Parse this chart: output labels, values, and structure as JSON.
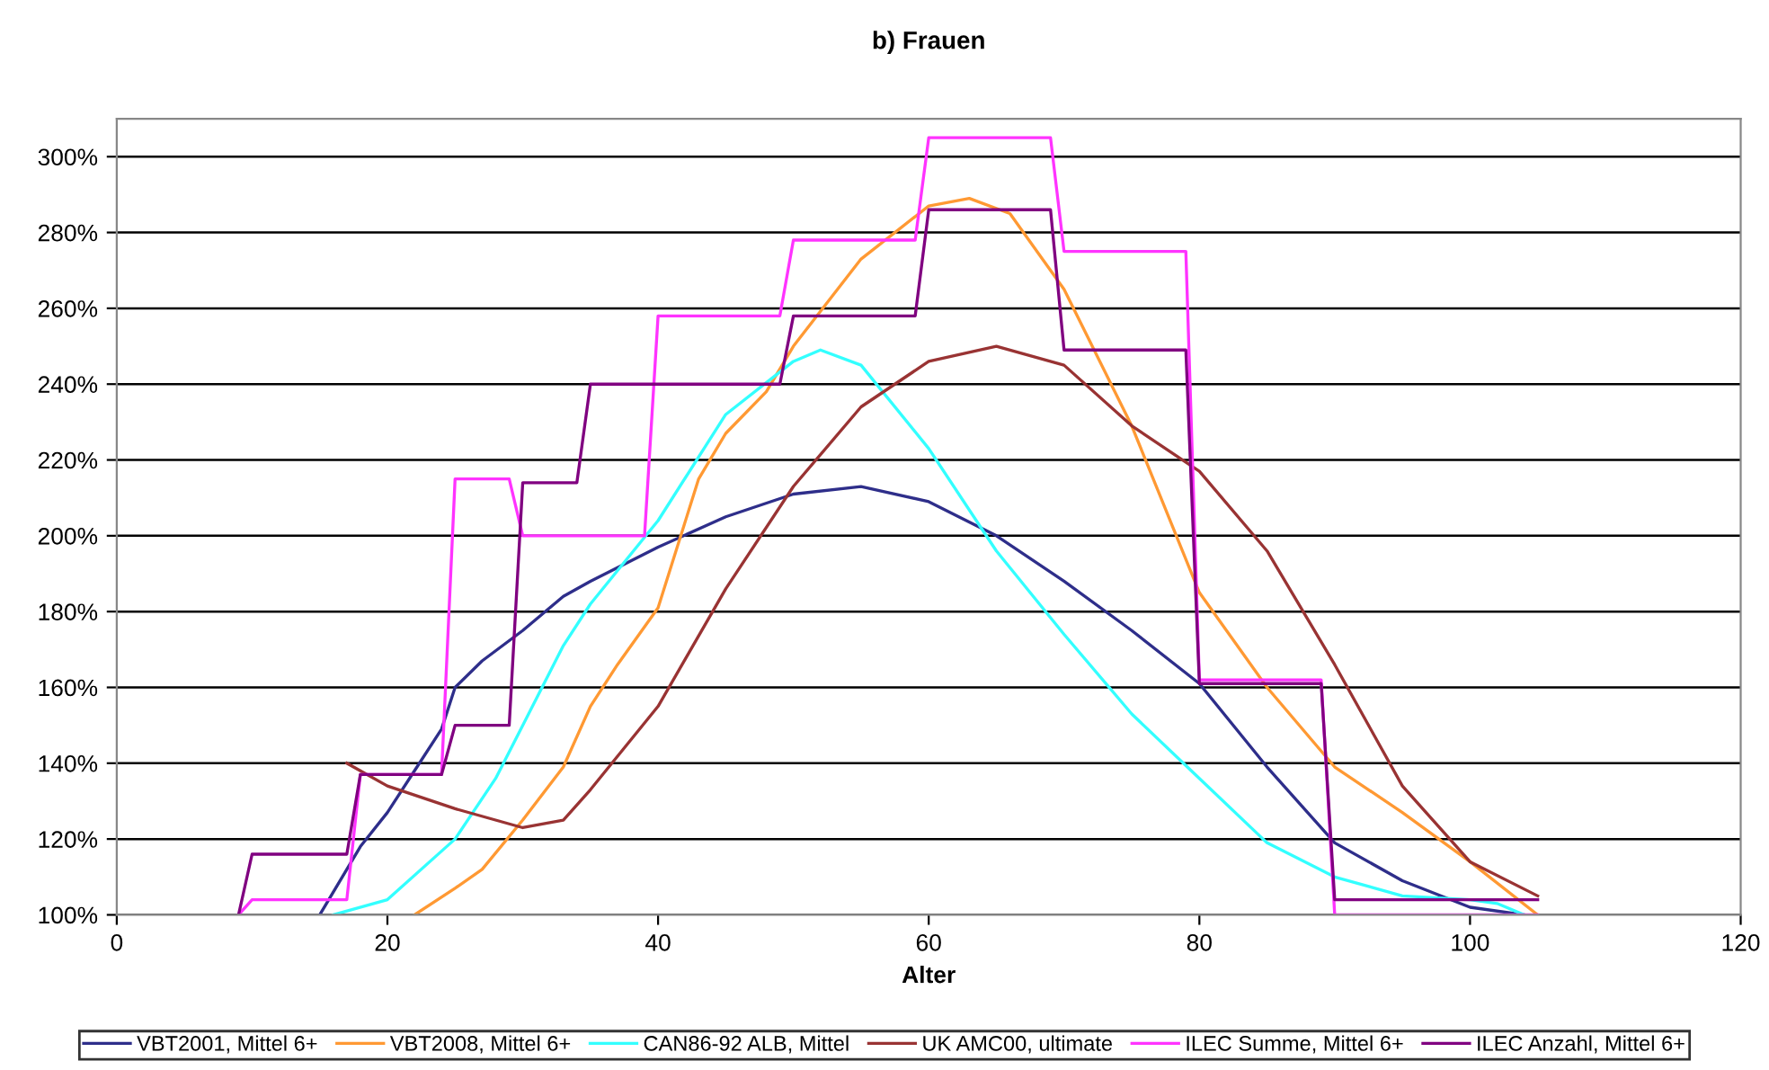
{
  "chart_data": {
    "type": "line",
    "title": "b) Frauen",
    "xlabel": "Alter",
    "xlim": [
      0,
      120
    ],
    "xticks": [
      0,
      20,
      40,
      60,
      80,
      100,
      120
    ],
    "ylim": [
      100,
      310
    ],
    "yticks": [
      {
        "value": 100,
        "label": "100%"
      },
      {
        "value": 120,
        "label": "120%"
      },
      {
        "value": 140,
        "label": "140%"
      },
      {
        "value": 160,
        "label": "160%"
      },
      {
        "value": 180,
        "label": "180%"
      },
      {
        "value": 200,
        "label": "200%"
      },
      {
        "value": 220,
        "label": "220%"
      },
      {
        "value": 240,
        "label": "240%"
      },
      {
        "value": 260,
        "label": "260%"
      },
      {
        "value": 280,
        "label": "280%"
      },
      {
        "value": 300,
        "label": "300%"
      }
    ],
    "grid": "y",
    "legend": "bottom",
    "marker": "none",
    "line_style": "solid",
    "series": [
      {
        "name": "VBT2001, Mittel 6+",
        "color": "#2e2e8a",
        "x": [
          15,
          18,
          20,
          22,
          24,
          25,
          27,
          30,
          33,
          35,
          40,
          45,
          50,
          55,
          60,
          65,
          70,
          75,
          80,
          85,
          90,
          95,
          100,
          104
        ],
        "values": [
          100,
          118,
          127,
          138,
          149,
          160,
          167,
          175,
          184,
          188,
          197,
          205,
          211,
          213,
          209,
          200,
          188,
          175,
          161,
          139,
          119,
          109,
          102,
          100
        ]
      },
      {
        "name": "VBT2008, Mittel 6+",
        "color": "#ff9933",
        "x": [
          22,
          25,
          27,
          30,
          33,
          35,
          37,
          40,
          43,
          45,
          48,
          50,
          55,
          60,
          63,
          66,
          70,
          75,
          80,
          85,
          90,
          95,
          100,
          105
        ],
        "values": [
          100,
          107,
          112,
          125,
          139,
          155,
          166,
          181,
          215,
          227,
          238,
          250,
          273,
          287,
          289,
          285,
          265,
          229,
          185,
          160,
          139,
          127,
          114,
          100
        ]
      },
      {
        "name": "CAN86-92 ALB, Mittel",
        "color": "#33ffff",
        "x": [
          16,
          20,
          25,
          28,
          30,
          33,
          35,
          40,
          45,
          50,
          52,
          55,
          60,
          65,
          70,
          75,
          80,
          85,
          90,
          95,
          100,
          102,
          104
        ],
        "values": [
          100,
          104,
          120,
          136,
          150,
          171,
          182,
          204,
          232,
          246,
          249,
          245,
          223,
          196,
          174,
          153,
          136,
          119,
          110,
          105,
          104,
          103,
          100
        ]
      },
      {
        "name": "UK AMC00, ultimate",
        "color": "#993333",
        "x": [
          17,
          20,
          25,
          30,
          33,
          35,
          40,
          45,
          50,
          55,
          60,
          65,
          70,
          75,
          80,
          85,
          90,
          95,
          100,
          105
        ],
        "values": [
          140,
          134,
          128,
          123,
          125,
          133,
          155,
          186,
          213,
          234,
          246,
          250,
          245,
          229,
          217,
          196,
          166,
          134,
          114,
          105
        ]
      },
      {
        "name": "ILEC Summe, Mittel 6+",
        "color": "#ff33ff",
        "x": [
          9,
          10,
          17,
          18,
          24,
          25,
          29,
          30,
          39,
          40,
          49,
          50,
          59,
          60,
          69,
          70,
          79,
          80,
          89,
          90,
          105
        ],
        "values": [
          100,
          104,
          104,
          137,
          137,
          215,
          215,
          200,
          200,
          258,
          258,
          278,
          278,
          305,
          305,
          275,
          275,
          162,
          162,
          100,
          100
        ]
      },
      {
        "name": "ILEC Anzahl, Mittel 6+",
        "color": "#800080",
        "x": [
          9,
          10,
          17,
          18,
          24,
          25,
          29,
          30,
          34,
          35,
          49,
          50,
          59,
          60,
          69,
          70,
          79,
          80,
          89,
          90,
          105
        ],
        "values": [
          100,
          116,
          116,
          137,
          137,
          150,
          150,
          214,
          214,
          240,
          240,
          258,
          258,
          286,
          286,
          249,
          249,
          161,
          161,
          104,
          104
        ]
      }
    ]
  }
}
